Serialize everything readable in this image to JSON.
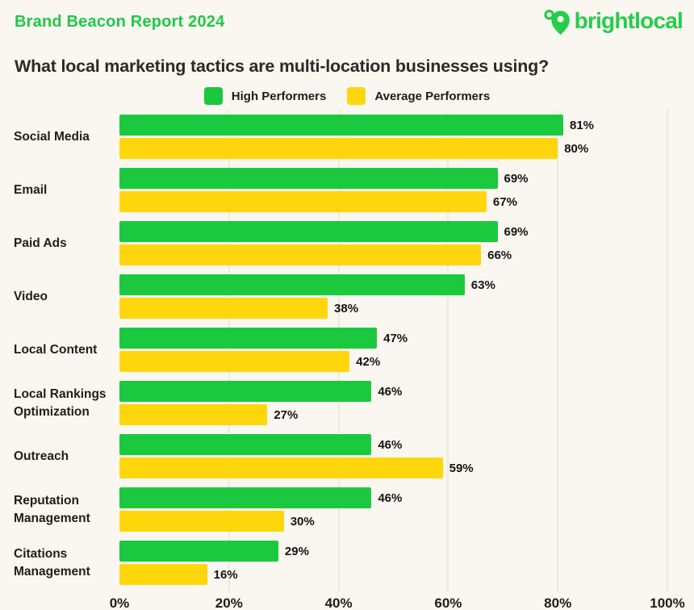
{
  "page": {
    "report_title": "Brand Beacon Report 2024",
    "question_title": "What local marketing tactics are multi-location businesses using?",
    "brand": "brightlocal"
  },
  "colors": {
    "background": "#faf7f0",
    "green": "#1bc93e",
    "yellow": "#ffd60b",
    "dark_text": "#2b2a26",
    "gridline": "#ecead9",
    "logo_green": "#25cd4a"
  },
  "legend": [
    {
      "label": "High Performers",
      "color": "#1bc93e"
    },
    {
      "label": "Average Performers",
      "color": "#ffd60b"
    }
  ],
  "chart_data": {
    "type": "bar",
    "orientation": "horizontal",
    "title": "What local marketing tactics are multi-location businesses using?",
    "categories": [
      "Social Media",
      "Email",
      "Paid Ads",
      "Video",
      "Local Content",
      "Local Rankings Optimization",
      "Outreach",
      "Reputation Management",
      "Citations Management"
    ],
    "series": [
      {
        "name": "High Performers",
        "color": "#1bc93e",
        "values": [
          81,
          69,
          69,
          63,
          47,
          46,
          46,
          46,
          29
        ]
      },
      {
        "name": "Average Performers",
        "color": "#ffd60b",
        "values": [
          80,
          67,
          66,
          38,
          42,
          27,
          59,
          30,
          16
        ]
      }
    ],
    "value_suffix": "%",
    "xlim": [
      0,
      100
    ],
    "x_ticks": [
      "0%",
      "20%",
      "40%",
      "60%",
      "80%",
      "100%"
    ],
    "x_tick_values": [
      0,
      20,
      40,
      60,
      80,
      100
    ],
    "grid": true,
    "legend_position": "top",
    "data_labels": true
  }
}
